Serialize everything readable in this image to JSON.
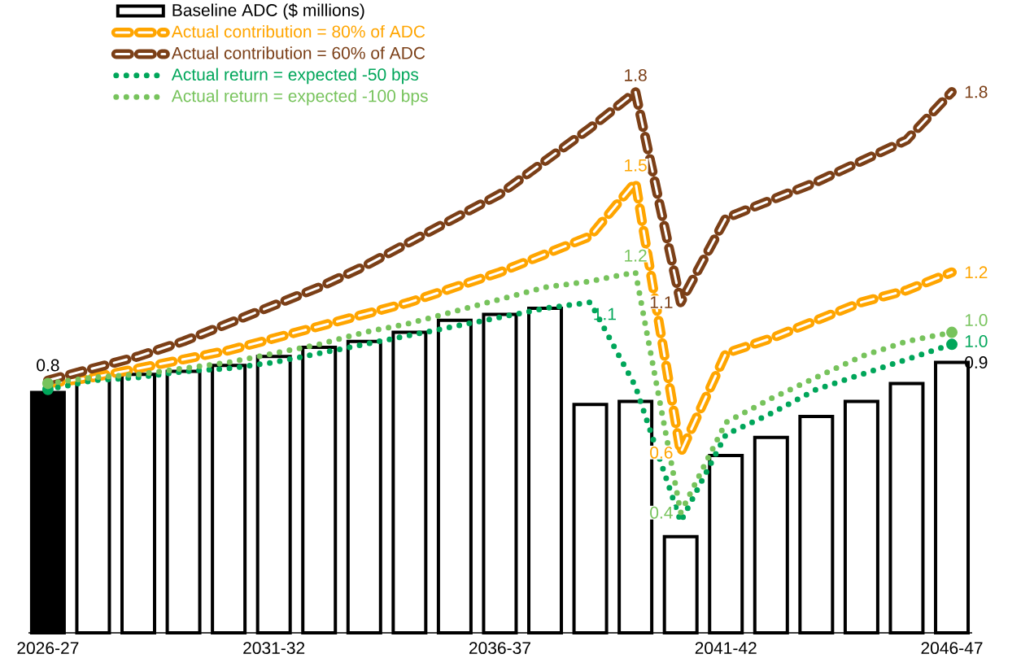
{
  "chart_data": {
    "type": "bar",
    "categories": [
      "2026-27",
      null,
      null,
      null,
      null,
      "2031-32",
      null,
      null,
      null,
      null,
      "2036-37",
      null,
      null,
      null,
      null,
      "2041-42",
      null,
      null,
      null,
      null,
      "2046-47"
    ],
    "legend": "top left",
    "series": [
      {
        "name": "Baseline ADC ($ millions)",
        "colors": [
          "#000000",
          "#ffffff",
          "#ffffff",
          "#ffffff",
          "#ffffff",
          "#ffffff",
          "#ffffff",
          "#ffffff",
          "#ffffff",
          "#ffffff",
          "#ffffff",
          "#ffffff",
          "#ffffff",
          "#ffffff",
          "#ffffff",
          "#ffffff",
          "#ffffff",
          "#ffffff",
          "#ffffff",
          "#ffffff",
          "#ffffff"
        ],
        "values": [
          0.8,
          0.85,
          0.86,
          0.87,
          0.89,
          0.92,
          0.95,
          0.97,
          1.0,
          1.04,
          1.06,
          1.08,
          0.76,
          0.77,
          0.32,
          0.59,
          0.65,
          0.72,
          0.77,
          0.83,
          0.9
        ],
        "value_labels": [
          "0.8",
          null,
          null,
          null,
          null,
          null,
          null,
          null,
          null,
          null,
          null,
          null,
          null,
          null,
          null,
          null,
          null,
          null,
          null,
          null,
          "0.9"
        ]
      },
      {
        "name": "Actual contribution = 80% of ADC",
        "type": "line",
        "color": "#ffa500",
        "line_style": "dashed",
        "values": [
          0.83,
          0.85,
          0.88,
          0.91,
          0.94,
          0.98,
          1.02,
          1.06,
          1.1,
          1.15,
          1.2,
          1.26,
          1.32,
          1.5,
          0.6,
          0.93,
          0.98,
          1.04,
          1.1,
          1.14,
          1.2
        ],
        "value_labels": [
          null,
          null,
          null,
          null,
          null,
          null,
          null,
          null,
          null,
          null,
          null,
          null,
          null,
          "1.5",
          "0.6",
          null,
          null,
          null,
          null,
          null,
          "1.2"
        ]
      },
      {
        "name": "Actual contribution = 60% of ADC",
        "type": "line",
        "color": "#7b3f17",
        "line_style": "dashed",
        "values": [
          0.84,
          0.88,
          0.92,
          0.97,
          1.03,
          1.09,
          1.15,
          1.22,
          1.3,
          1.38,
          1.46,
          1.57,
          1.68,
          1.8,
          1.1,
          1.38,
          1.44,
          1.5,
          1.57,
          1.64,
          1.8
        ],
        "value_labels": [
          null,
          null,
          null,
          null,
          null,
          null,
          null,
          null,
          null,
          null,
          null,
          null,
          null,
          "1.8",
          "1.1",
          null,
          null,
          null,
          null,
          null,
          "1.8"
        ]
      },
      {
        "name": "Actual return = expected -50 bps",
        "type": "line",
        "color": "#00a65a",
        "line_style": "dotted",
        "values": [
          0.81,
          0.84,
          0.85,
          0.87,
          0.88,
          0.9,
          0.93,
          0.96,
          0.99,
          1.02,
          1.05,
          1.08,
          1.1,
          0.82,
          0.37,
          0.66,
          0.73,
          0.81,
          0.86,
          0.91,
          0.96
        ],
        "value_labels": [
          null,
          null,
          null,
          null,
          null,
          null,
          null,
          null,
          null,
          null,
          null,
          null,
          "1.1",
          null,
          null,
          null,
          null,
          null,
          null,
          null,
          "1.0"
        ]
      },
      {
        "name": "Actual return = expected -100 bps",
        "type": "line",
        "color": "#77c35c",
        "line_style": "dotted",
        "values": [
          0.83,
          0.85,
          0.86,
          0.88,
          0.9,
          0.93,
          0.96,
          1.0,
          1.03,
          1.07,
          1.11,
          1.15,
          1.17,
          1.2,
          0.4,
          0.7,
          0.78,
          0.85,
          0.92,
          0.97,
          1.0
        ],
        "value_labels": [
          null,
          null,
          null,
          null,
          null,
          null,
          null,
          null,
          null,
          null,
          null,
          null,
          null,
          "1.2",
          "0.4",
          null,
          null,
          null,
          null,
          null,
          "1.0"
        ]
      }
    ]
  }
}
